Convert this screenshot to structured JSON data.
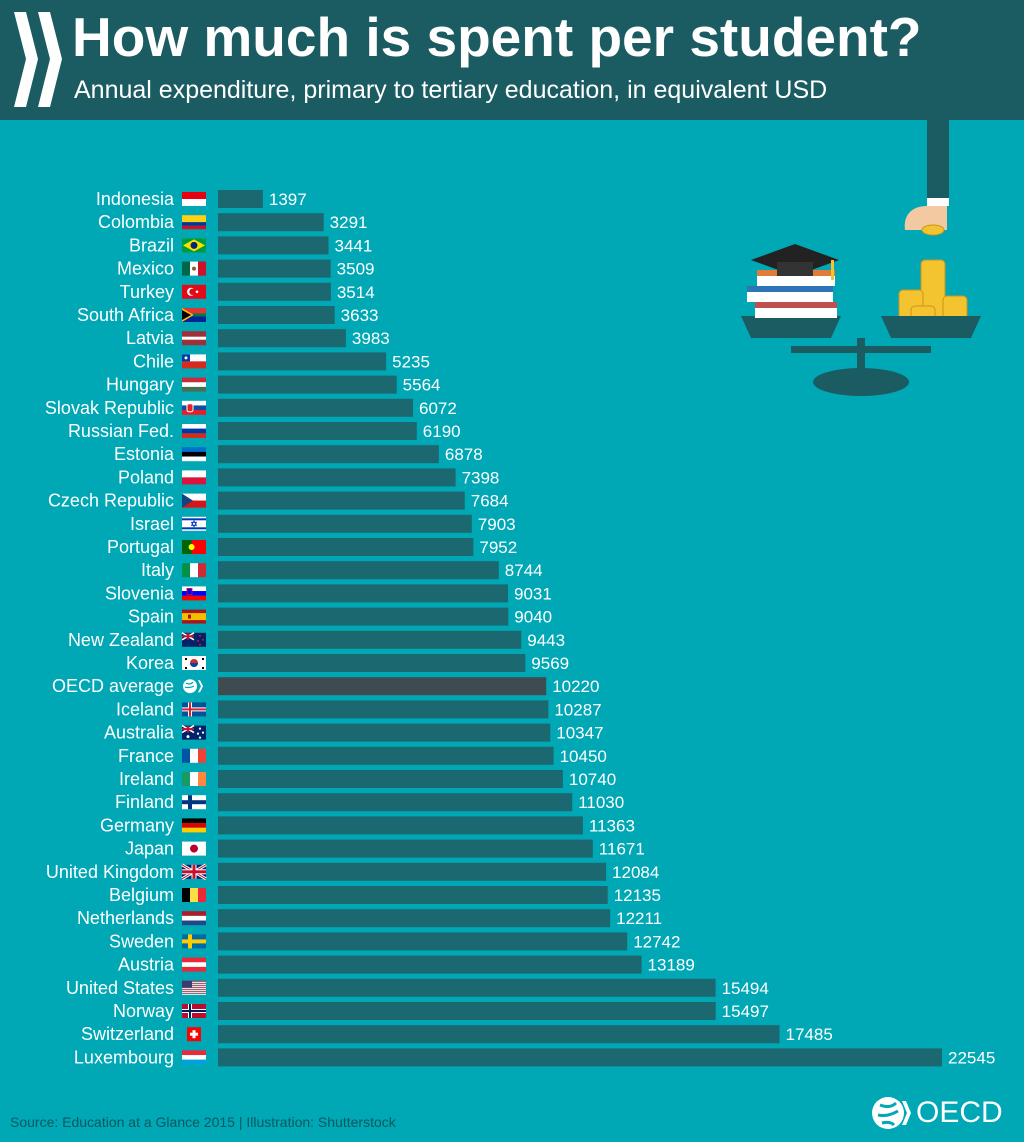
{
  "header": {
    "title": "How much is spent per student?",
    "subtitle": "Annual expenditure, primary to tertiary education, in equivalent USD"
  },
  "footer": {
    "source": "Source: Education at a Glance 2015 | Illustration: Shutterstock",
    "brand": "OECD"
  },
  "colors": {
    "background": "#00a7b5",
    "header": "#1b5c63",
    "bar": "#1c6870",
    "highlight_bar": "#3e4b4f",
    "label_text": "#ffffff"
  },
  "chart_data": {
    "type": "bar",
    "orientation": "horizontal",
    "title": "How much is spent per student?",
    "subtitle": "Annual expenditure, primary to tertiary education, in equivalent USD",
    "xlabel": "",
    "ylabel": "",
    "xlim": [
      0,
      22545
    ],
    "grid": false,
    "legend": "none",
    "highlight": "OECD average",
    "categories": [
      "Indonesia",
      "Colombia",
      "Brazil",
      "Mexico",
      "Turkey",
      "South Africa",
      "Latvia",
      "Chile",
      "Hungary",
      "Slovak Republic",
      "Russian Fed.",
      "Estonia",
      "Poland",
      "Czech Republic",
      "Israel",
      "Portugal",
      "Italy",
      "Slovenia",
      "Spain",
      "New Zealand",
      "Korea",
      "OECD average",
      "Iceland",
      "Australia",
      "France",
      "Ireland",
      "Finland",
      "Germany",
      "Japan",
      "United Kingdom",
      "Belgium",
      "Netherlands",
      "Sweden",
      "Austria",
      "United States",
      "Norway",
      "Switzerland",
      "Luxembourg"
    ],
    "values": [
      1397,
      3291,
      3441,
      3509,
      3514,
      3633,
      3983,
      5235,
      5564,
      6072,
      6190,
      6878,
      7398,
      7684,
      7903,
      7952,
      8744,
      9031,
      9040,
      9443,
      9569,
      10220,
      10287,
      10347,
      10450,
      10740,
      11030,
      11363,
      11671,
      12084,
      12135,
      12211,
      12742,
      13189,
      15494,
      15497,
      17485,
      22545
    ],
    "flags": [
      "indonesia-flag-icon",
      "colombia-flag-icon",
      "brazil-flag-icon",
      "mexico-flag-icon",
      "turkey-flag-icon",
      "south-africa-flag-icon",
      "latvia-flag-icon",
      "chile-flag-icon",
      "hungary-flag-icon",
      "slovakia-flag-icon",
      "russia-flag-icon",
      "estonia-flag-icon",
      "poland-flag-icon",
      "czech-flag-icon",
      "israel-flag-icon",
      "portugal-flag-icon",
      "italy-flag-icon",
      "slovenia-flag-icon",
      "spain-flag-icon",
      "new-zealand-flag-icon",
      "korea-flag-icon",
      "oecd-logo-icon",
      "iceland-flag-icon",
      "australia-flag-icon",
      "france-flag-icon",
      "ireland-flag-icon",
      "finland-flag-icon",
      "germany-flag-icon",
      "japan-flag-icon",
      "uk-flag-icon",
      "belgium-flag-icon",
      "netherlands-flag-icon",
      "sweden-flag-icon",
      "austria-flag-icon",
      "usa-flag-icon",
      "norway-flag-icon",
      "switzerland-flag-icon",
      "luxembourg-flag-icon"
    ]
  }
}
